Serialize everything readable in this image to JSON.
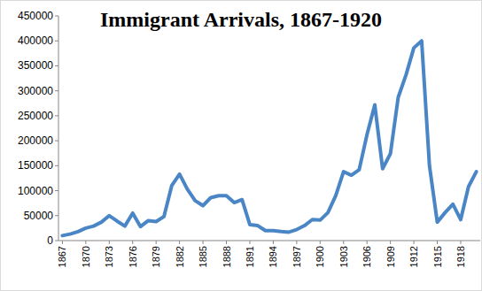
{
  "chart_data": {
    "type": "line",
    "title": "Immigrant Arrivals, 1867-1920",
    "x": [
      1867,
      1868,
      1869,
      1870,
      1871,
      1872,
      1873,
      1874,
      1875,
      1876,
      1877,
      1878,
      1879,
      1880,
      1881,
      1882,
      1883,
      1884,
      1885,
      1886,
      1887,
      1888,
      1889,
      1890,
      1891,
      1892,
      1893,
      1894,
      1895,
      1896,
      1897,
      1898,
      1899,
      1900,
      1901,
      1902,
      1903,
      1904,
      1905,
      1906,
      1907,
      1908,
      1909,
      1910,
      1911,
      1912,
      1913,
      1914,
      1915,
      1916,
      1917,
      1918,
      1919,
      1920
    ],
    "values": [
      10000,
      13000,
      18000,
      25000,
      29000,
      37000,
      50000,
      39000,
      29000,
      55000,
      28000,
      40000,
      38000,
      48000,
      110000,
      133000,
      103000,
      80000,
      70000,
      86000,
      90000,
      90000,
      76000,
      82000,
      32000,
      30000,
      20000,
      20000,
      18000,
      17000,
      22000,
      30000,
      42000,
      41000,
      56000,
      90000,
      138000,
      131000,
      142000,
      212000,
      272000,
      144000,
      174000,
      287000,
      332000,
      386000,
      400000,
      150000,
      37000,
      56000,
      73000,
      42000,
      108000,
      138000
    ],
    "color": "#4a86c6",
    "xlim": [
      1866.5,
      1920.5
    ],
    "xticks": [
      1867,
      1870,
      1873,
      1876,
      1879,
      1882,
      1885,
      1888,
      1891,
      1894,
      1897,
      1900,
      1903,
      1906,
      1909,
      1912,
      1915,
      1918
    ],
    "ylim": [
      0,
      450000
    ],
    "yticks": [
      0,
      50000,
      100000,
      150000,
      200000,
      250000,
      300000,
      350000,
      400000,
      450000
    ],
    "grid": false
  }
}
